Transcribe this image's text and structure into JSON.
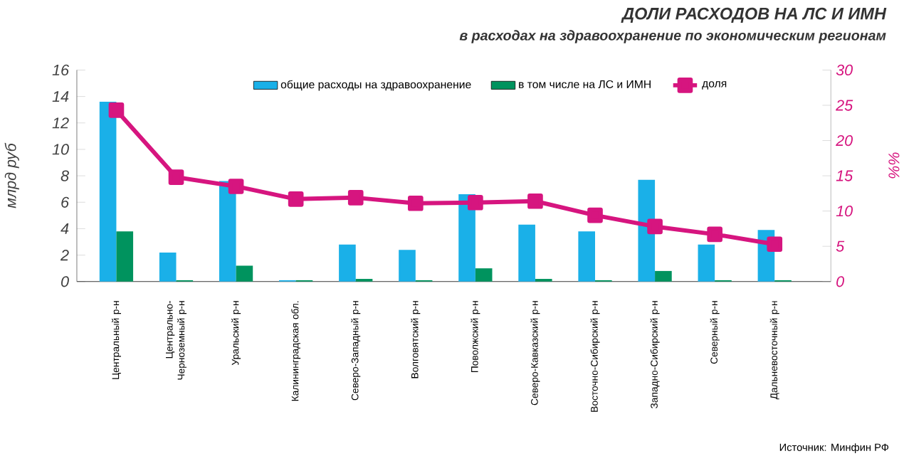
{
  "chart_data": {
    "type": "bar",
    "title": "ДОЛИ РАСХОДОВ НА ЛС И ИМН",
    "subtitle": "в расходах на здравоохранение по экономическим регионам",
    "ylabel": "млрд руб",
    "y2label": "%%",
    "categories": [
      "Центральный р-н",
      "Центрально-Черноземный р-н",
      "Уральский р-н",
      "Калининградская обл.",
      "Северо-Западный р-н",
      "Волговятский р-н",
      "Поволжский р-н",
      "Северо-Кавказский р-н",
      "Восточно-Сибирский р-н",
      "Западно-Сибирский р-н",
      "Северный р-н",
      "Дальневосточный р-н"
    ],
    "series": [
      {
        "name": "общие расходы на здравоохранение",
        "color": "#1ab0e8",
        "values": [
          13.6,
          2.2,
          7.6,
          0.1,
          2.8,
          2.4,
          6.6,
          4.3,
          3.8,
          7.7,
          2.8,
          3.9
        ]
      },
      {
        "name": "в том числе на ЛС и ИМН",
        "color": "#00935e",
        "values": [
          3.8,
          0.1,
          1.2,
          0.1,
          0.2,
          0.1,
          1.0,
          0.2,
          0.1,
          0.8,
          0.1,
          0.1
        ]
      },
      {
        "name": "доля",
        "type": "line",
        "axis": "y2",
        "color": "#d6157f",
        "marker": "square",
        "values": [
          24.3,
          14.8,
          13.5,
          11.7,
          11.9,
          11.1,
          11.2,
          11.4,
          9.4,
          7.8,
          6.7,
          5.3
        ]
      }
    ],
    "ylim": [
      0,
      16
    ],
    "yticks": [
      0,
      2,
      4,
      6,
      8,
      10,
      12,
      14,
      16
    ],
    "y2lim": [
      0,
      30
    ],
    "y2ticks": [
      0,
      5,
      10,
      15,
      20,
      25,
      30
    ],
    "legend": "top",
    "annotations": [
      "Источник: Минфин РФ"
    ]
  }
}
